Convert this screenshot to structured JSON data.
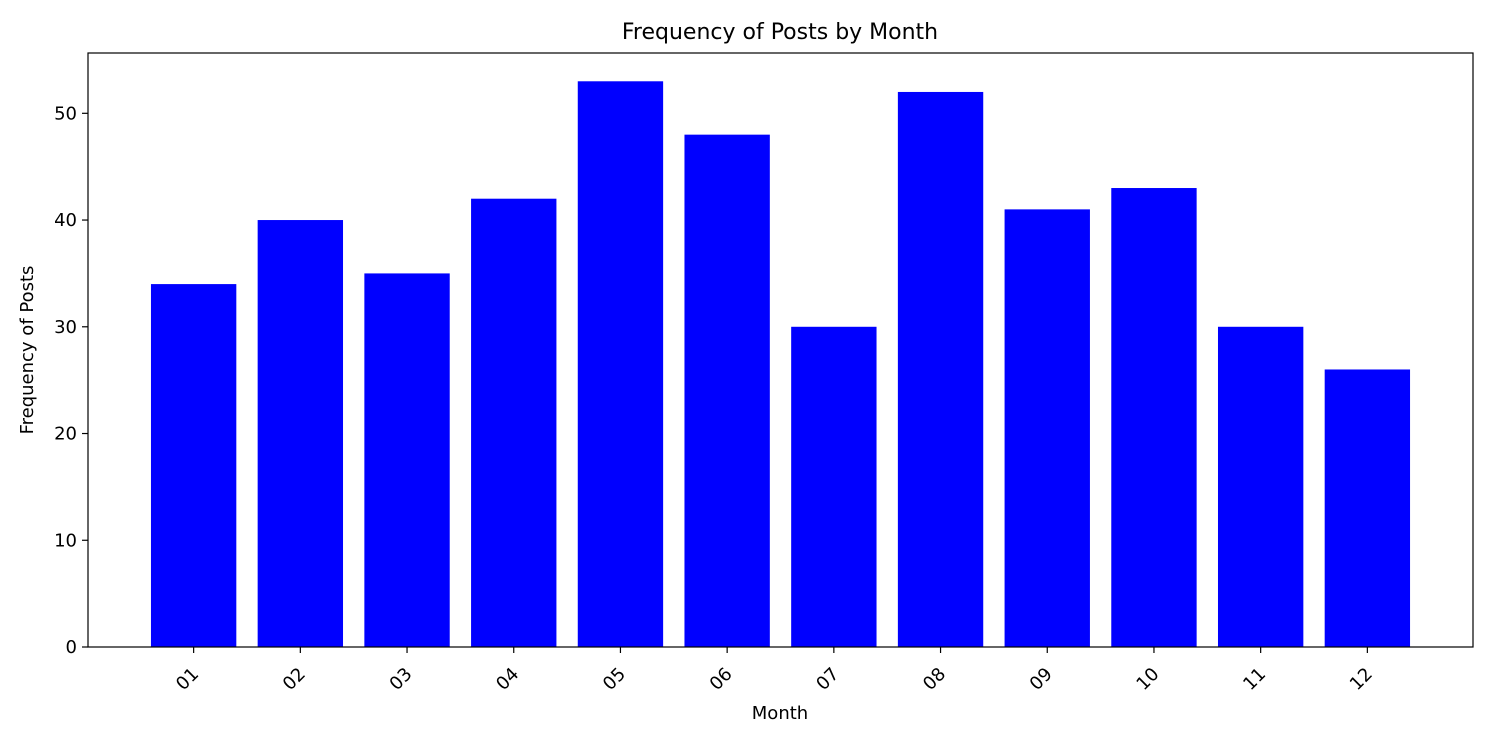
{
  "chart_data": {
    "type": "bar",
    "title": "Frequency of Posts by Month",
    "x_label": "Month",
    "y_label": "Frequency of Posts",
    "categories": [
      "01",
      "02",
      "03",
      "04",
      "05",
      "06",
      "07",
      "08",
      "09",
      "10",
      "11",
      "12"
    ],
    "values": [
      34,
      40,
      35,
      42,
      53,
      48,
      30,
      52,
      41,
      43,
      30,
      26
    ],
    "color": "#0000ff",
    "ylim": [
      0,
      55.65
    ],
    "yticks": [
      0,
      10,
      20,
      30,
      40,
      50
    ],
    "grid": false
  }
}
